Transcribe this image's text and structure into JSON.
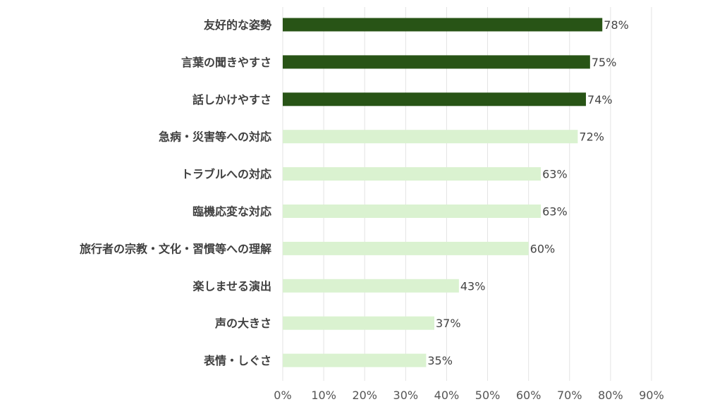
{
  "chart_data": {
    "type": "bar",
    "orientation": "horizontal",
    "title": "",
    "xlabel": "",
    "ylabel": "",
    "xlim": [
      0,
      90
    ],
    "grid": true,
    "categories": [
      "友好的な姿勢",
      "言葉の聞きやすさ",
      "話しかけやすさ",
      "急病・災害等への対応",
      "トラブルへの対応",
      "臨機応変な対応",
      "旅行者の宗教・文化・習慣等への理解",
      "楽しませる演出",
      "声の大きさ",
      "表情・しぐさ"
    ],
    "values": [
      78,
      75,
      74,
      72,
      63,
      63,
      60,
      43,
      37,
      35
    ],
    "value_labels": [
      "78%",
      "75%",
      "74%",
      "72%",
      "63%",
      "63%",
      "60%",
      "43%",
      "37%",
      "35%"
    ],
    "highlighted": [
      true,
      true,
      true,
      false,
      false,
      false,
      false,
      false,
      false,
      false
    ],
    "x_ticks": [
      0,
      10,
      20,
      30,
      40,
      50,
      60,
      70,
      80,
      90
    ],
    "x_tick_labels": [
      "0%",
      "10%",
      "20%",
      "30%",
      "40%",
      "50%",
      "60%",
      "70%",
      "80%",
      "90%"
    ],
    "colors": {
      "highlight": "#285416",
      "normal": "#daf2d0",
      "grid": "#e3e3e3",
      "text": "#555555",
      "label": "#404040"
    }
  }
}
